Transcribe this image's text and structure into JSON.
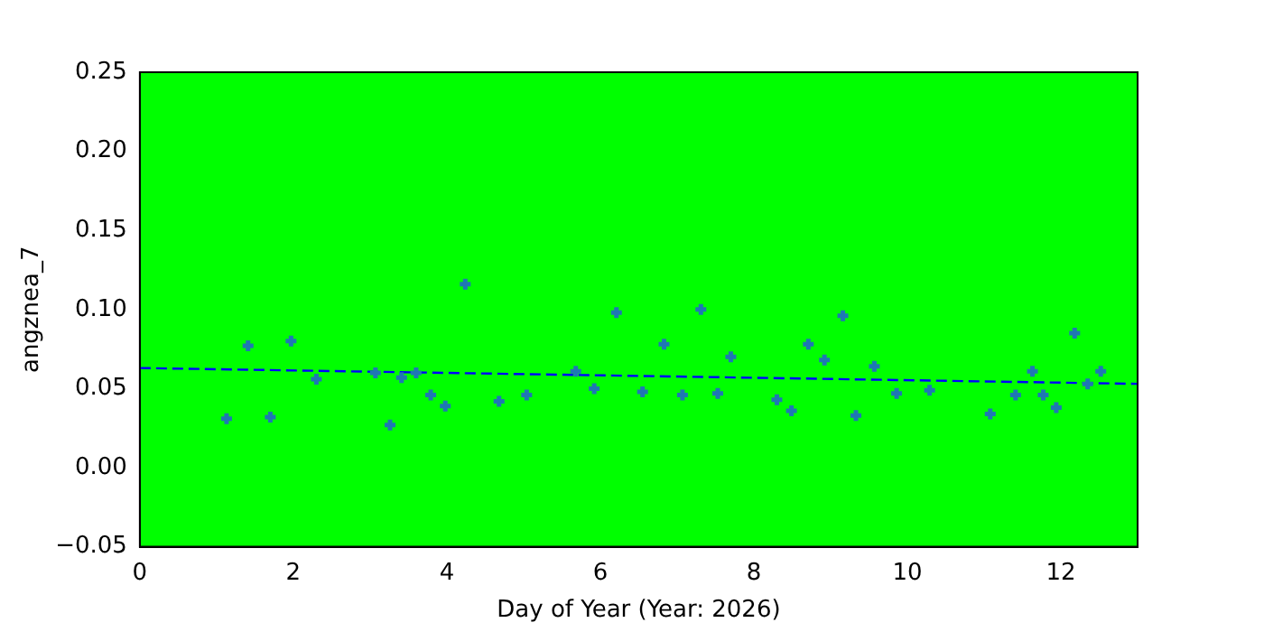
{
  "chart_data": {
    "type": "scatter",
    "xlabel": "Day of Year (Year: 2026)",
    "ylabel": "angznea_7",
    "xlim": [
      0,
      13
    ],
    "xticks": [
      0,
      2,
      4,
      6,
      8,
      10,
      12
    ],
    "ylim": [
      -0.05,
      0.25
    ],
    "yticks": [
      {
        "value": -0.05,
        "label": "−0.05"
      },
      {
        "value": 0,
        "label": "0.00"
      },
      {
        "value": 0.05,
        "label": "0.05"
      },
      {
        "value": 0.1,
        "label": "0.10"
      },
      {
        "value": 0.15,
        "label": "0.15"
      },
      {
        "value": 0.2,
        "label": "0.20"
      },
      {
        "value": 0.25,
        "label": "0.25"
      }
    ],
    "grid": false,
    "legend": false,
    "series": [
      {
        "type": "scatter",
        "color": "#1f77b4",
        "marker": "cross",
        "x": [
          1.13,
          1.41,
          1.7,
          1.97,
          2.3,
          3.07,
          3.26,
          3.41,
          3.6,
          3.79,
          3.98,
          4.24,
          4.68,
          5.04,
          5.68,
          5.92,
          6.21,
          6.55,
          6.83,
          7.07,
          7.31,
          7.53,
          7.7,
          8.3,
          8.49,
          8.71,
          8.92,
          9.16,
          9.33,
          9.57,
          9.86,
          10.29,
          11.08,
          11.41,
          11.63,
          11.77,
          11.94,
          12.18,
          12.35,
          12.52
        ],
        "values": [
          0.031,
          0.077,
          0.032,
          0.08,
          0.056,
          0.06,
          0.027,
          0.057,
          0.06,
          0.046,
          0.039,
          0.116,
          0.042,
          0.046,
          0.061,
          0.05,
          0.098,
          0.048,
          0.078,
          0.046,
          0.1,
          0.047,
          0.07,
          0.043,
          0.036,
          0.078,
          0.068,
          0.096,
          0.033,
          0.064,
          0.047,
          0.049,
          0.034,
          0.046,
          0.061,
          0.046,
          0.038,
          0.085,
          0.053,
          0.061
        ]
      },
      {
        "type": "line",
        "color": "#0000ff",
        "line_style": "dashed",
        "marker": "none",
        "x": [
          0,
          13
        ],
        "values": [
          0.063,
          0.053
        ]
      }
    ]
  }
}
